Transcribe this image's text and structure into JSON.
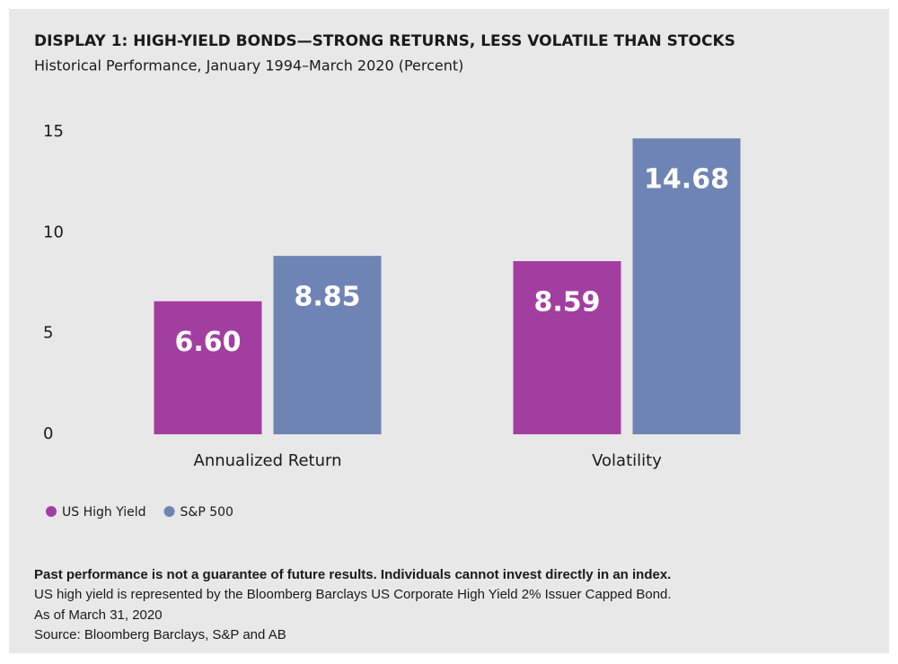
{
  "chart_data": {
    "type": "bar",
    "title": "DISPLAY 1: HIGH-YIELD BONDS—STRONG RETURNS, LESS VOLATILE THAN STOCKS",
    "subtitle": "Historical Performance, January 1994–March 2020 (Percent)",
    "categories": [
      "Annualized Return",
      "Volatility"
    ],
    "series": [
      {
        "name": "US High Yield",
        "color": "#a33ea1",
        "values": [
          6.6,
          8.59
        ],
        "value_labels": [
          "6.60",
          "8.59"
        ]
      },
      {
        "name": "S&P 500",
        "color": "#6e84b5",
        "values": [
          8.85,
          14.68
        ],
        "value_labels": [
          "8.85",
          "14.68"
        ]
      }
    ],
    "ylim": [
      0,
      15
    ],
    "yticks": [
      0,
      5,
      10,
      15
    ],
    "grid": false,
    "footnote": "Past performance is not a guarantee of future results. Individuals cannot invest directly in an index.",
    "notes": [
      "US high yield is represented by the Bloomberg Barclays US Corporate High Yield 2% Issuer Capped Bond.",
      "As of March 31, 2020",
      "Source: Bloomberg Barclays, S&P and AB"
    ]
  }
}
